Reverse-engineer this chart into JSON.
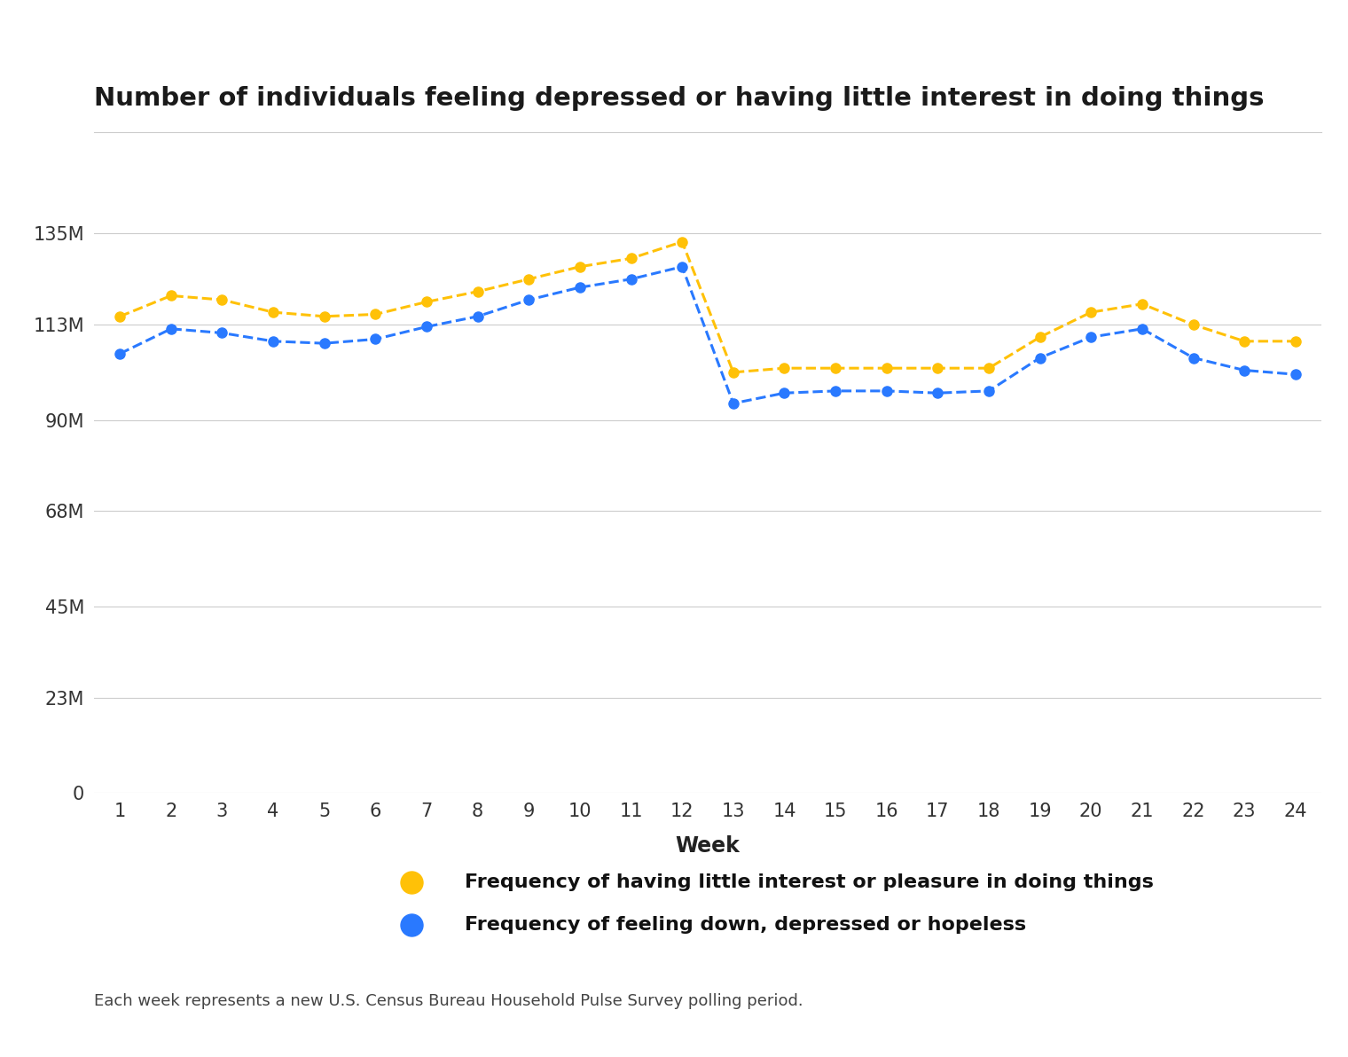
{
  "title": "Number of individuals feeling depressed or having little interest in doing things",
  "xlabel": "Week",
  "footnote": "Each week represents a new U.S. Census Bureau Household Pulse Survey polling period.",
  "weeks": [
    1,
    2,
    3,
    4,
    5,
    6,
    7,
    8,
    9,
    10,
    11,
    12,
    13,
    14,
    15,
    16,
    17,
    18,
    19,
    20,
    21,
    22,
    23,
    24
  ],
  "interest_values": [
    115000000,
    120000000,
    119000000,
    116000000,
    115000000,
    115500000,
    118500000,
    121000000,
    124000000,
    127000000,
    129000000,
    133000000,
    101500000,
    102500000,
    102500000,
    102500000,
    102500000,
    102500000,
    110000000,
    116000000,
    118000000,
    113000000,
    109000000,
    109000000
  ],
  "depressed_values": [
    106000000,
    112000000,
    111000000,
    109000000,
    108500000,
    109500000,
    112500000,
    115000000,
    119000000,
    122000000,
    124000000,
    127000000,
    94000000,
    96500000,
    97000000,
    97000000,
    96500000,
    97000000,
    105000000,
    110000000,
    112000000,
    105000000,
    102000000,
    101000000
  ],
  "interest_color": "#FFC107",
  "depressed_color": "#2979FF",
  "yticks": [
    0,
    23000000,
    45000000,
    68000000,
    90000000,
    113000000,
    135000000
  ],
  "ytick_labels": [
    "0",
    "23M",
    "45M",
    "68M",
    "90M",
    "113M",
    "135M"
  ],
  "ylim": [
    0,
    148000000
  ],
  "xlim": [
    0.5,
    24.5
  ],
  "background_color": "#ffffff",
  "title_color": "#1a1a1a",
  "legend_label_interest": "Frequency of having little interest or pleasure in doing things",
  "legend_label_depressed": "Frequency of feeling down, depressed or hopeless",
  "tick_fontsize": 15,
  "xlabel_fontsize": 17,
  "title_fontsize": 21,
  "legend_fontsize": 16,
  "footnote_fontsize": 13
}
